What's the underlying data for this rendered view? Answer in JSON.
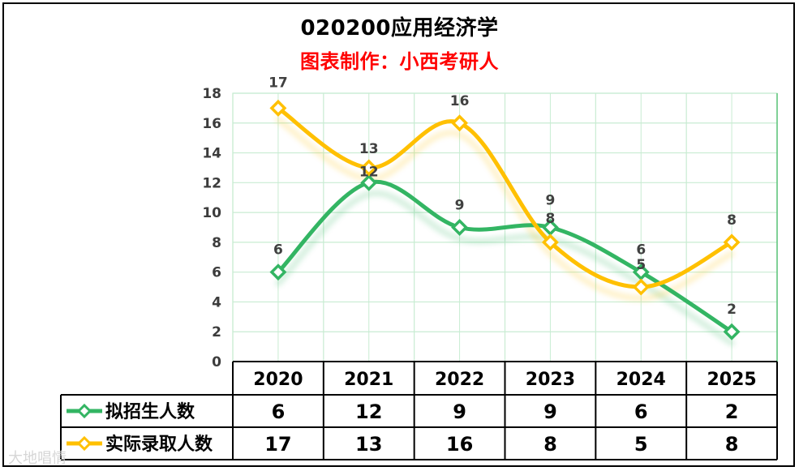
{
  "title": "020200应用经济学",
  "subtitle": "图表制作：小西考研人",
  "colors": {
    "series1": "#33b563",
    "series2": "#ffc000",
    "subtitle": "#ff0000",
    "grid": "#c8ecd2",
    "axis": "#3c3c3c"
  },
  "chart_data": {
    "type": "line",
    "categories": [
      "2020",
      "2021",
      "2022",
      "2023",
      "2024",
      "2025"
    ],
    "ylim": [
      0,
      18
    ],
    "yticks": [
      0,
      2,
      4,
      6,
      8,
      10,
      12,
      14,
      16,
      18
    ],
    "grid": true,
    "series": [
      {
        "name": "拟招生人数",
        "values": [
          6,
          12,
          9,
          9,
          6,
          2
        ],
        "color": "#33b563",
        "marker": "diamond"
      },
      {
        "name": "实际录取人数",
        "values": [
          17,
          13,
          16,
          8,
          5,
          8
        ],
        "color": "#ffc000",
        "marker": "diamond"
      }
    ],
    "data_table": true
  },
  "watermark": "大地唱情"
}
